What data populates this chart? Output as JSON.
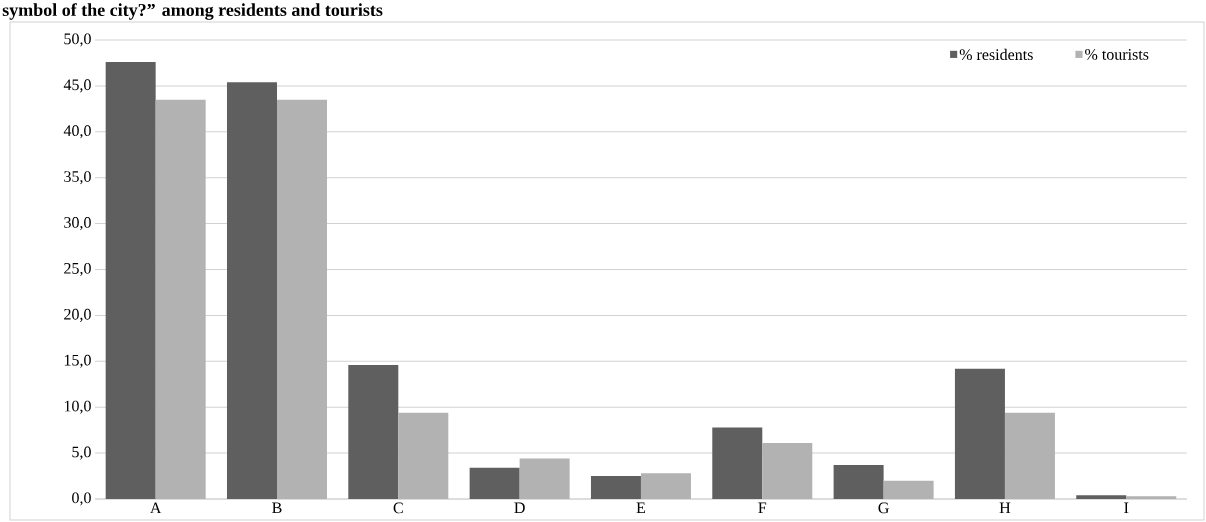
{
  "chart_data": {
    "type": "bar",
    "title": "symbol of the city?” among residents and tourists",
    "categories": [
      "A",
      "B",
      "C",
      "D",
      "E",
      "F",
      "G",
      "H",
      "I"
    ],
    "series": [
      {
        "name": "% residents",
        "color": "#5f5f5f",
        "values": [
          47.6,
          45.4,
          14.6,
          3.4,
          2.5,
          7.8,
          3.7,
          14.2,
          0.4
        ]
      },
      {
        "name": "% tourists",
        "color": "#b2b2b2",
        "values": [
          43.5,
          43.5,
          9.4,
          4.4,
          2.8,
          6.1,
          2.0,
          9.4,
          0.3
        ]
      }
    ],
    "ylim": [
      0,
      50
    ],
    "yticks": [
      {
        "value": 0,
        "label": "0,0"
      },
      {
        "value": 5,
        "label": "5,0"
      },
      {
        "value": 10,
        "label": "10,0"
      },
      {
        "value": 15,
        "label": "15,0"
      },
      {
        "value": 20,
        "label": "20,0"
      },
      {
        "value": 25,
        "label": "25,0"
      },
      {
        "value": 30,
        "label": "30,0"
      },
      {
        "value": 35,
        "label": "35,0"
      },
      {
        "value": 40,
        "label": "40,0"
      },
      {
        "value": 45,
        "label": "45,0"
      },
      {
        "value": 50,
        "label": "50,0"
      }
    ],
    "grid": "y",
    "legend": "top right"
  }
}
